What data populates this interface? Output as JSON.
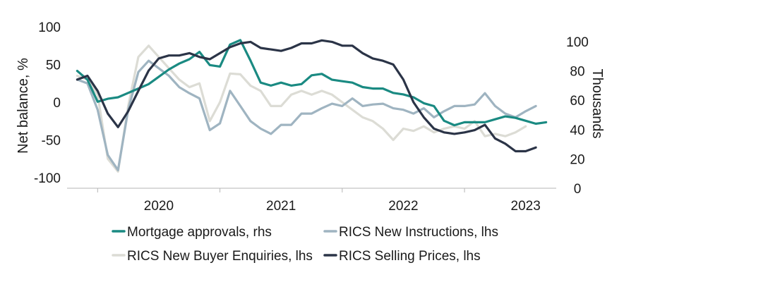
{
  "chart_data": {
    "type": "line",
    "title": "",
    "y_left": {
      "label": "Net balance, %",
      "range": [
        -100,
        100
      ],
      "ticks": [
        "100",
        "50",
        "0",
        "-50",
        "-100"
      ]
    },
    "y_right": {
      "label": "Thousands",
      "range": [
        0,
        100
      ],
      "ticks": [
        "100",
        "80",
        "60",
        "40",
        "20",
        "0"
      ]
    },
    "x": {
      "labels": [
        "2020",
        "2021",
        "2022",
        "2023"
      ],
      "start": 2019.75,
      "end": 2023.75
    },
    "series": [
      {
        "name": "Mortgage approvals, rhs",
        "axis": "right",
        "color": "#1a8a82",
        "legend": "Mortgage approvals, rhs",
        "points": [
          [
            2019.833,
            80
          ],
          [
            2019.917,
            74
          ],
          [
            2020,
            59
          ],
          [
            2020.083,
            61
          ],
          [
            2020.167,
            62
          ],
          [
            2020.25,
            65
          ],
          [
            2020.333,
            68
          ],
          [
            2020.417,
            71
          ],
          [
            2020.5,
            76
          ],
          [
            2020.583,
            81
          ],
          [
            2020.667,
            85
          ],
          [
            2020.75,
            88
          ],
          [
            2020.833,
            93
          ],
          [
            2020.917,
            84
          ],
          [
            2021,
            83
          ],
          [
            2021.083,
            98
          ],
          [
            2021.167,
            101
          ],
          [
            2021.25,
            87
          ],
          [
            2021.333,
            72
          ],
          [
            2021.417,
            70
          ],
          [
            2021.5,
            72
          ],
          [
            2021.583,
            70
          ],
          [
            2021.667,
            71
          ],
          [
            2021.75,
            77
          ],
          [
            2021.833,
            78
          ],
          [
            2021.917,
            74
          ],
          [
            2022,
            73
          ],
          [
            2022.083,
            72
          ],
          [
            2022.167,
            69
          ],
          [
            2022.25,
            68
          ],
          [
            2022.333,
            68
          ],
          [
            2022.417,
            65
          ],
          [
            2022.5,
            64
          ],
          [
            2022.583,
            62
          ],
          [
            2022.667,
            58
          ],
          [
            2022.75,
            56
          ],
          [
            2022.833,
            46
          ],
          [
            2022.917,
            43
          ],
          [
            2023,
            45
          ],
          [
            2023.083,
            45
          ],
          [
            2023.167,
            45
          ],
          [
            2023.25,
            47
          ],
          [
            2023.333,
            49
          ],
          [
            2023.417,
            48
          ],
          [
            2023.5,
            46
          ],
          [
            2023.583,
            44
          ],
          [
            2023.667,
            45
          ]
        ]
      },
      {
        "name": "RICS New Instructions, lhs",
        "axis": "left",
        "color": "#9fb4c1",
        "legend": "RICS New Instructions, lhs",
        "points": [
          [
            2019.833,
            30
          ],
          [
            2019.917,
            25
          ],
          [
            2020,
            -10
          ],
          [
            2020.083,
            -70
          ],
          [
            2020.167,
            -90
          ],
          [
            2020.25,
            -10
          ],
          [
            2020.333,
            40
          ],
          [
            2020.417,
            55
          ],
          [
            2020.5,
            45
          ],
          [
            2020.583,
            35
          ],
          [
            2020.667,
            20
          ],
          [
            2020.75,
            12
          ],
          [
            2020.833,
            5
          ],
          [
            2020.917,
            -37
          ],
          [
            2021,
            -28
          ],
          [
            2021.083,
            15
          ],
          [
            2021.167,
            -5
          ],
          [
            2021.25,
            -25
          ],
          [
            2021.333,
            -35
          ],
          [
            2021.417,
            -42
          ],
          [
            2021.5,
            -30
          ],
          [
            2021.583,
            -30
          ],
          [
            2021.667,
            -15
          ],
          [
            2021.75,
            -15
          ],
          [
            2021.833,
            -8
          ],
          [
            2021.917,
            -2
          ],
          [
            2022,
            -5
          ],
          [
            2022.083,
            5
          ],
          [
            2022.167,
            -5
          ],
          [
            2022.25,
            -3
          ],
          [
            2022.333,
            -2
          ],
          [
            2022.417,
            -8
          ],
          [
            2022.5,
            -10
          ],
          [
            2022.583,
            -15
          ],
          [
            2022.667,
            -8
          ],
          [
            2022.75,
            -20
          ],
          [
            2022.833,
            -12
          ],
          [
            2022.917,
            -5
          ],
          [
            2023,
            -5
          ],
          [
            2023.083,
            -3
          ],
          [
            2023.167,
            12
          ],
          [
            2023.25,
            -5
          ],
          [
            2023.333,
            -15
          ],
          [
            2023.417,
            -20
          ],
          [
            2023.5,
            -12
          ],
          [
            2023.583,
            -5
          ]
        ]
      },
      {
        "name": "RICS New Buyer Enquiries, lhs",
        "axis": "left",
        "color": "#dcdcd5",
        "legend": "RICS New Buyer Enquiries, lhs",
        "points": [
          [
            2019.833,
            35
          ],
          [
            2019.917,
            30
          ],
          [
            2020,
            10
          ],
          [
            2020.083,
            -75
          ],
          [
            2020.167,
            -92
          ],
          [
            2020.25,
            -5
          ],
          [
            2020.333,
            60
          ],
          [
            2020.417,
            75
          ],
          [
            2020.5,
            60
          ],
          [
            2020.583,
            45
          ],
          [
            2020.667,
            30
          ],
          [
            2020.75,
            20
          ],
          [
            2020.833,
            25
          ],
          [
            2020.917,
            -25
          ],
          [
            2021,
            0
          ],
          [
            2021.083,
            38
          ],
          [
            2021.167,
            37
          ],
          [
            2021.25,
            22
          ],
          [
            2021.333,
            15
          ],
          [
            2021.417,
            -5
          ],
          [
            2021.5,
            -5
          ],
          [
            2021.583,
            10
          ],
          [
            2021.667,
            15
          ],
          [
            2021.75,
            10
          ],
          [
            2021.833,
            15
          ],
          [
            2021.917,
            10
          ],
          [
            2022,
            0
          ],
          [
            2022.083,
            -10
          ],
          [
            2022.167,
            -20
          ],
          [
            2022.25,
            -25
          ],
          [
            2022.333,
            -35
          ],
          [
            2022.417,
            -50
          ],
          [
            2022.5,
            -35
          ],
          [
            2022.583,
            -38
          ],
          [
            2022.667,
            -32
          ],
          [
            2022.75,
            -40
          ],
          [
            2022.833,
            -35
          ],
          [
            2022.917,
            -32
          ],
          [
            2023,
            -35
          ],
          [
            2023.083,
            -25
          ],
          [
            2023.167,
            -45
          ],
          [
            2023.25,
            -42
          ],
          [
            2023.333,
            -45
          ],
          [
            2023.417,
            -40
          ],
          [
            2023.5,
            -32
          ]
        ]
      },
      {
        "name": "RICS Selling Prices, lhs",
        "axis": "left",
        "color": "#2b3447",
        "legend": "RICS Selling Prices, lhs",
        "points": [
          [
            2019.833,
            30
          ],
          [
            2019.917,
            35
          ],
          [
            2020,
            15
          ],
          [
            2020.083,
            -15
          ],
          [
            2020.167,
            -33
          ],
          [
            2020.25,
            -12
          ],
          [
            2020.333,
            15
          ],
          [
            2020.417,
            42
          ],
          [
            2020.5,
            58
          ],
          [
            2020.583,
            62
          ],
          [
            2020.667,
            62
          ],
          [
            2020.75,
            65
          ],
          [
            2020.833,
            60
          ],
          [
            2020.917,
            57
          ],
          [
            2021,
            65
          ],
          [
            2021.083,
            73
          ],
          [
            2021.167,
            78
          ],
          [
            2021.25,
            80
          ],
          [
            2021.333,
            72
          ],
          [
            2021.417,
            70
          ],
          [
            2021.5,
            68
          ],
          [
            2021.583,
            72
          ],
          [
            2021.667,
            78
          ],
          [
            2021.75,
            78
          ],
          [
            2021.833,
            82
          ],
          [
            2021.917,
            80
          ],
          [
            2022,
            75
          ],
          [
            2022.083,
            75
          ],
          [
            2022.167,
            65
          ],
          [
            2022.25,
            58
          ],
          [
            2022.333,
            55
          ],
          [
            2022.417,
            50
          ],
          [
            2022.5,
            30
          ],
          [
            2022.583,
            0
          ],
          [
            2022.667,
            -20
          ],
          [
            2022.75,
            -35
          ],
          [
            2022.833,
            -40
          ],
          [
            2022.917,
            -42
          ],
          [
            2023,
            -40
          ],
          [
            2023.083,
            -37
          ],
          [
            2023.167,
            -30
          ],
          [
            2023.25,
            -48
          ],
          [
            2023.333,
            -55
          ],
          [
            2023.417,
            -65
          ],
          [
            2023.5,
            -65
          ],
          [
            2023.583,
            -60
          ]
        ]
      }
    ],
    "legend_position": "bottom"
  }
}
